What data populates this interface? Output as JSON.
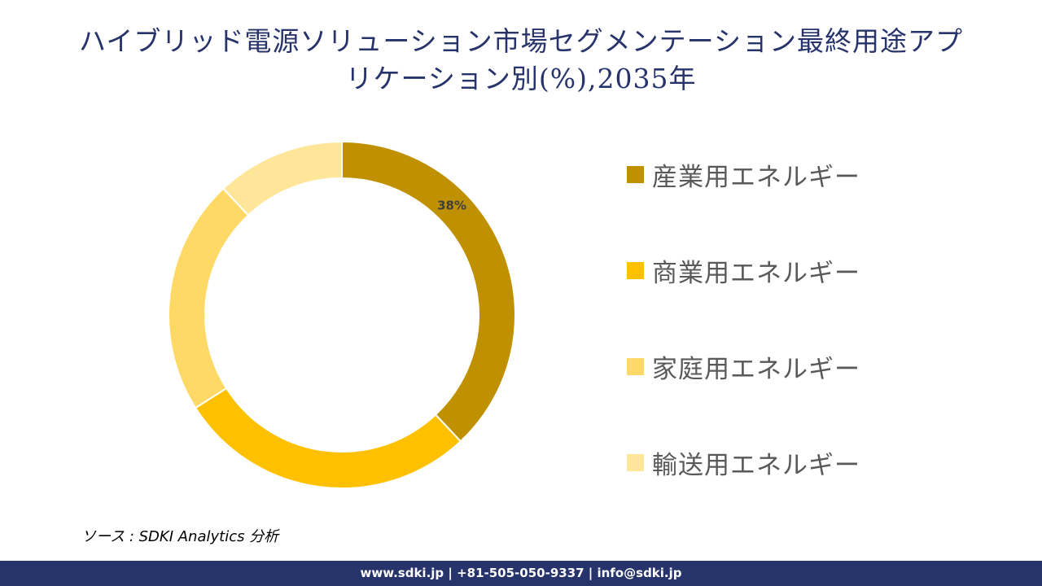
{
  "title": {
    "line1": "ハイブリッド電源ソリューション市場セグメンテーション最終用途アプ",
    "line2": "リケーション別(%),2035年"
  },
  "chart_data": {
    "type": "pie",
    "subtype": "donut",
    "title": "ハイブリッド電源ソリューション市場セグメンテーション最終用途アプリケーション別(%),2035年",
    "categories": [
      "産業用エネルギー",
      "商業用エネルギー",
      "家庭用エネルギー",
      "輸送用エネルギー"
    ],
    "values": [
      38,
      28,
      22,
      12
    ],
    "colors": [
      "#bf9000",
      "#ffc000",
      "#ffd966",
      "#ffe699"
    ],
    "data_labels": [
      {
        "category": "産業用エネルギー",
        "text": "38%"
      }
    ],
    "legend_position": "right",
    "start_angle": 0,
    "direction": "clockwise"
  },
  "legend": {
    "items": [
      {
        "label": "産業用エネルギー",
        "color": "#bf9000"
      },
      {
        "label": "商業用エネルギー",
        "color": "#ffc000"
      },
      {
        "label": "家庭用エネルギー",
        "color": "#ffd966"
      },
      {
        "label": "輸送用エネルギー",
        "color": "#ffe699"
      }
    ]
  },
  "source": "ソース : SDKI Analytics 分析",
  "footer": "www.sdki.jp | +81-505-050-9337 | info@sdki.jp"
}
